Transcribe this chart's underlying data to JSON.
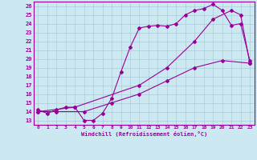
{
  "xlabel": "Windchill (Refroidissement éolien,°C)",
  "line_color": "#990099",
  "bg_color": "#cce8f0",
  "grid_color": "#aaccdd",
  "xlim": [
    -0.5,
    23.5
  ],
  "ylim": [
    12.5,
    26.5
  ],
  "yticks": [
    13,
    14,
    15,
    16,
    17,
    18,
    19,
    20,
    21,
    22,
    23,
    24,
    25,
    26
  ],
  "xticks": [
    0,
    1,
    2,
    3,
    4,
    5,
    6,
    7,
    8,
    9,
    10,
    11,
    12,
    13,
    14,
    15,
    16,
    17,
    18,
    19,
    20,
    21,
    22,
    23
  ],
  "line1": {
    "x": [
      0,
      4,
      11,
      14,
      17,
      19,
      21,
      22,
      23
    ],
    "y": [
      14,
      14.5,
      17,
      19,
      22,
      24.5,
      25.5,
      25,
      19.5
    ]
  },
  "line2": {
    "x": [
      0,
      1,
      2,
      3,
      4,
      5,
      6,
      7,
      8,
      9,
      10,
      11,
      12,
      13,
      14,
      15,
      16,
      17,
      18,
      19,
      20,
      21,
      22,
      23
    ],
    "y": [
      14.2,
      13.8,
      14.2,
      14.5,
      14.5,
      13.0,
      13.0,
      13.8,
      15.5,
      18.5,
      21.3,
      23.5,
      23.7,
      23.8,
      23.7,
      24.0,
      25.0,
      25.5,
      25.7,
      26.2,
      25.5,
      23.8,
      24.0,
      19.8
    ]
  },
  "line3": {
    "x": [
      0,
      2,
      5,
      8,
      11,
      14,
      17,
      20,
      23
    ],
    "y": [
      14,
      14,
      14,
      15,
      16,
      17.5,
      19,
      19.8,
      19.5
    ]
  }
}
